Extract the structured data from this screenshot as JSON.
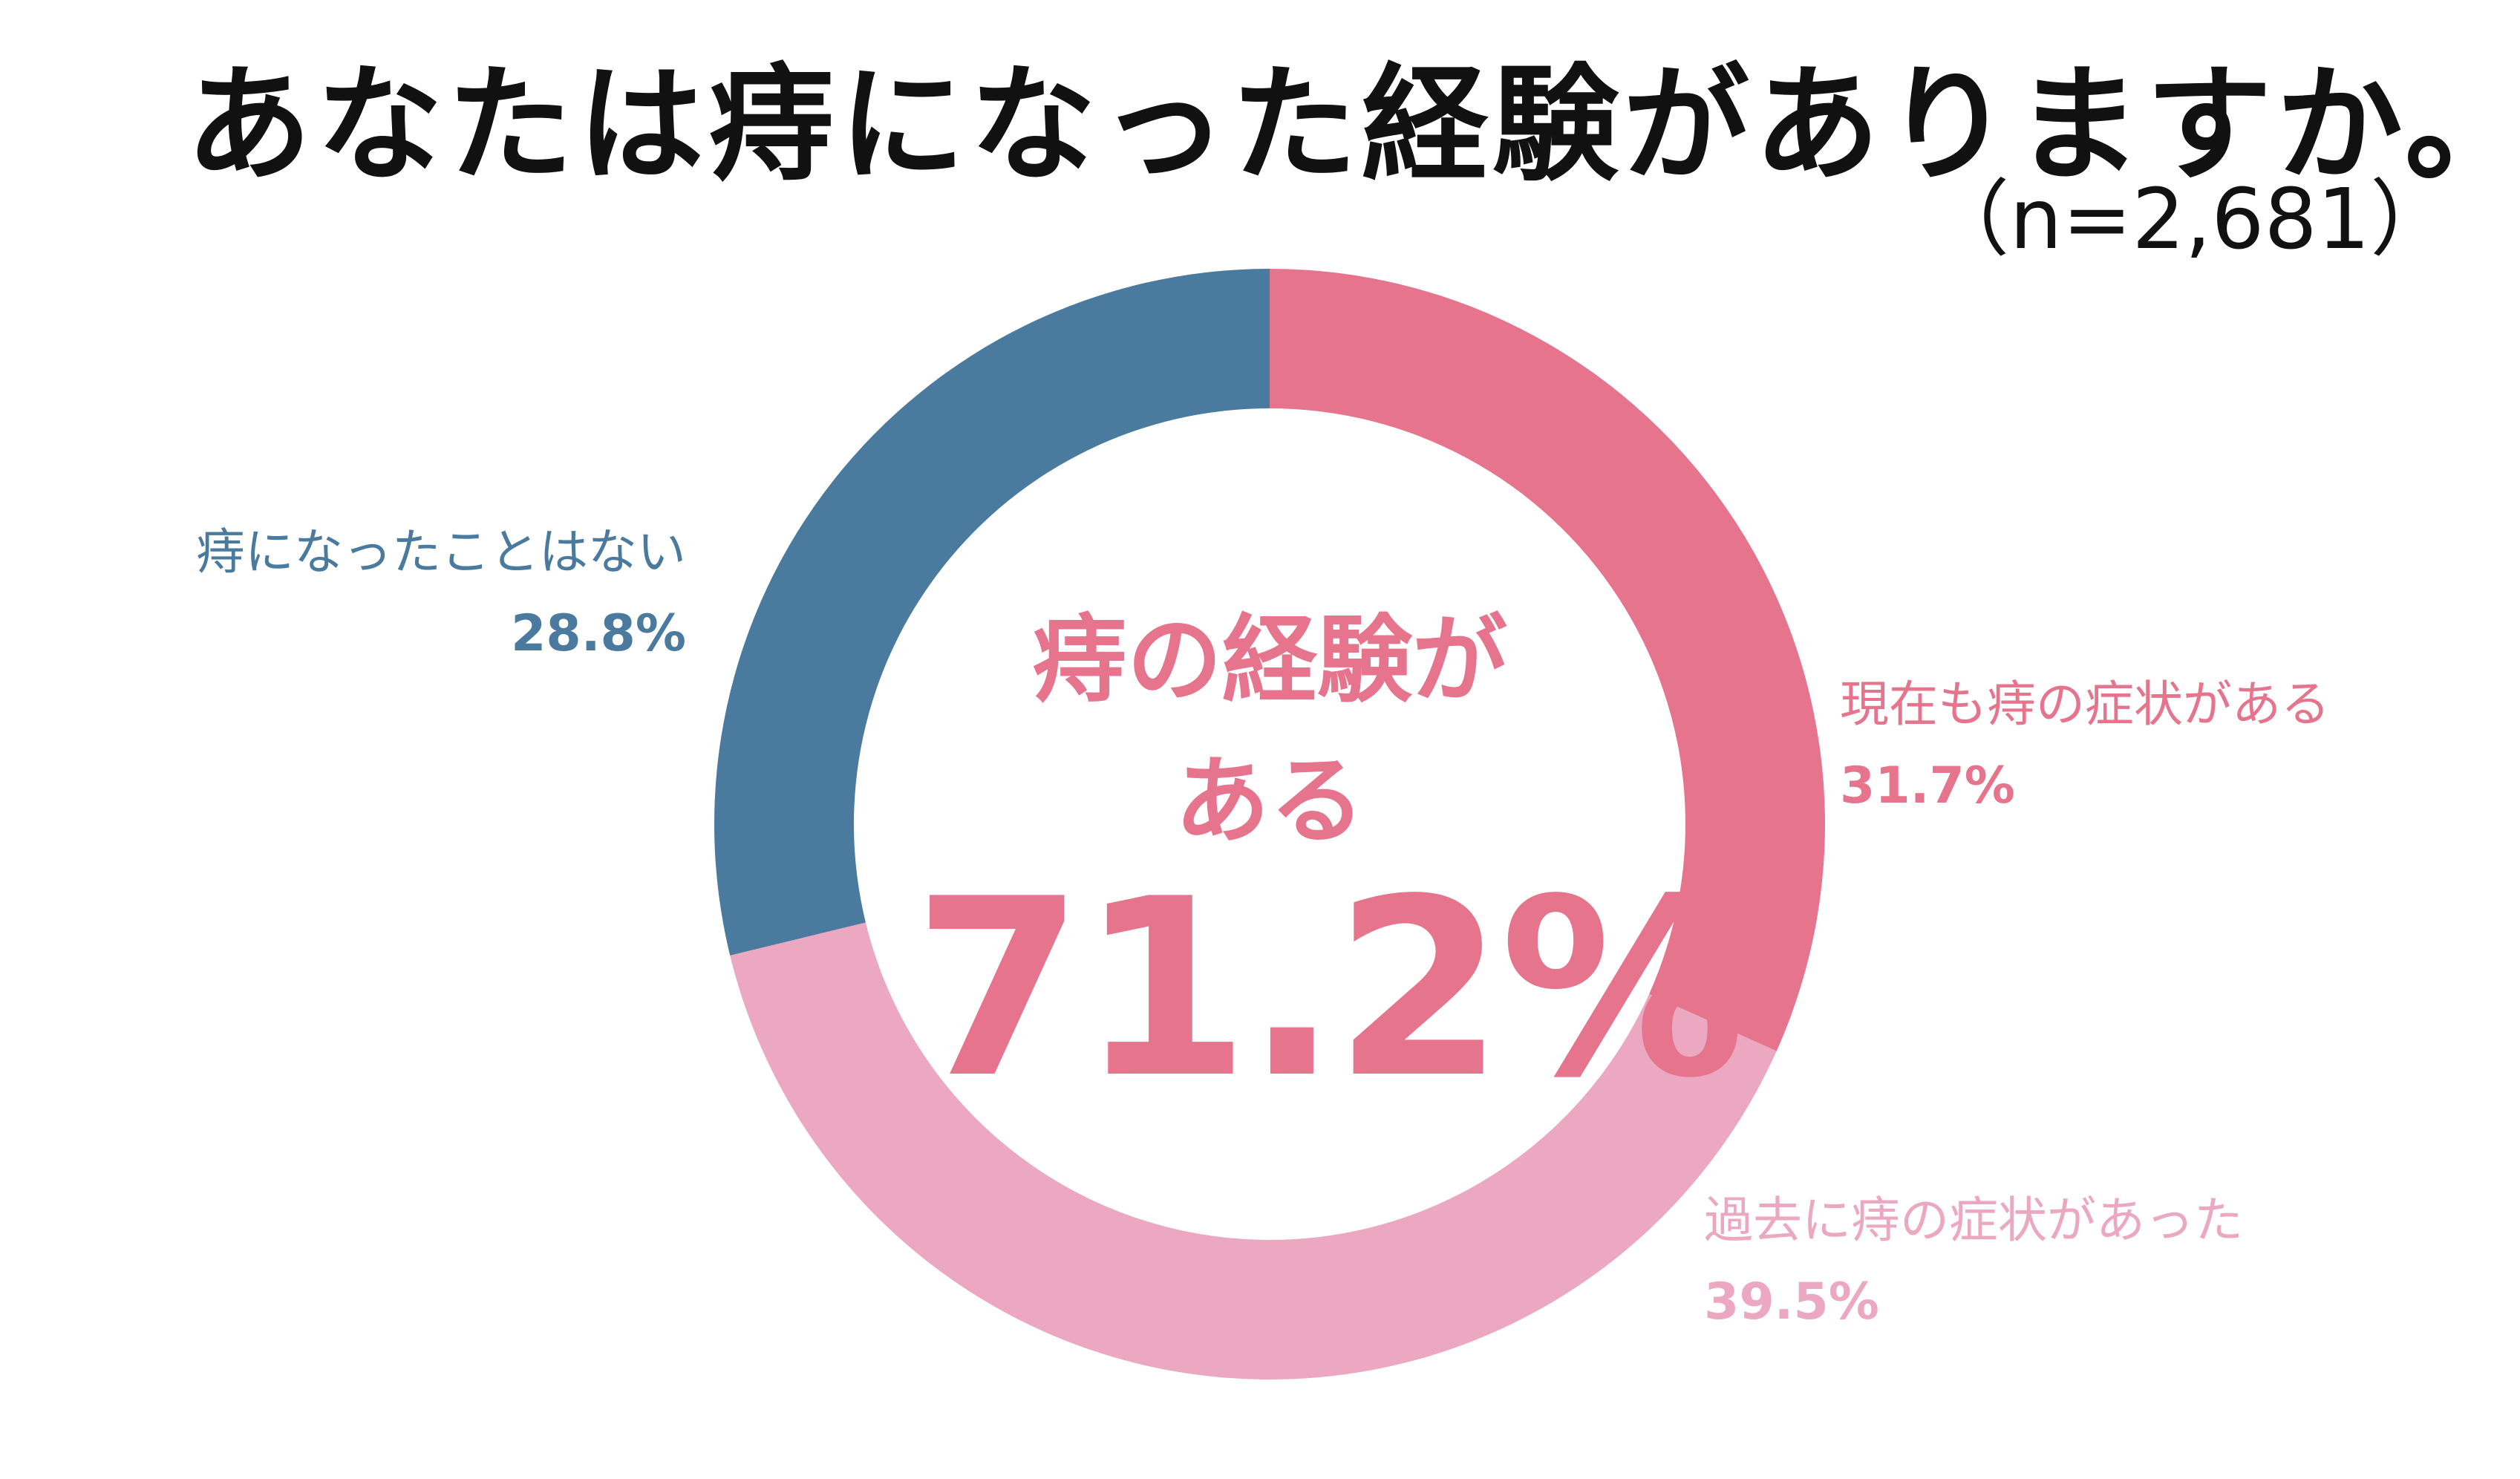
{
  "title": "あなたは痔になった経験がありますか。",
  "sample_size": "（n=2,681）",
  "colors": {
    "current": "#e5748c",
    "past": "#eba8c0",
    "never": "#4a7a9e"
  },
  "center": {
    "line1": "痔の経験が",
    "line2": "ある",
    "value": "71.2%"
  },
  "chart_data": {
    "type": "pie",
    "title": "あなたは痔になった経験がありますか。",
    "donut": true,
    "slices": [
      {
        "label": "現在も痔の症状がある",
        "value": 31.7,
        "display": "31.7%",
        "color": "#e5748c"
      },
      {
        "label": "過去に痔の症状があった",
        "value": 39.5,
        "display": "39.5%",
        "color": "#eba8c0"
      },
      {
        "label": "痔になったことはない",
        "value": 28.8,
        "display": "28.8%",
        "color": "#4a7a9e"
      }
    ],
    "start": "12 o'clock",
    "direction": "clockwise"
  }
}
